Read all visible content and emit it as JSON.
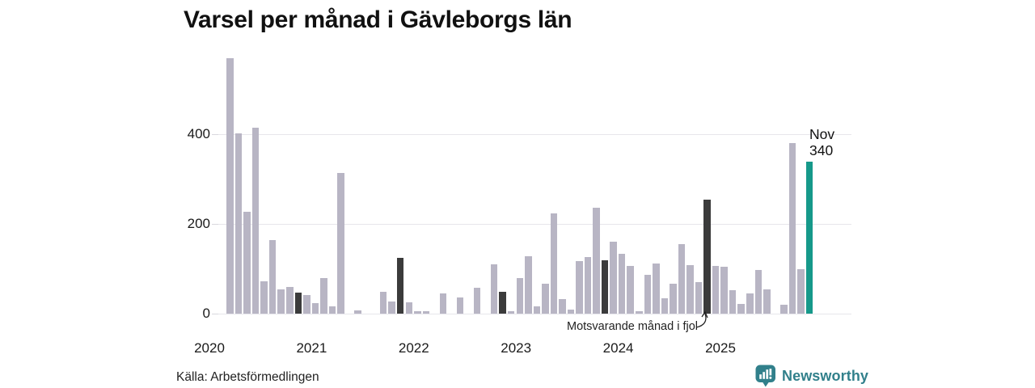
{
  "header": {
    "title": "Varsel per månad i Gävleborgs län"
  },
  "chart_data": {
    "type": "bar",
    "title": "Varsel per månad i Gävleborgs län",
    "x": [
      "2020-03",
      "2020-04",
      "2020-05",
      "2020-06",
      "2020-07",
      "2020-08",
      "2020-09",
      "2020-10",
      "2020-11",
      "2020-12",
      "2021-01",
      "2021-02",
      "2021-03",
      "2021-04",
      "2021-05",
      "2021-06",
      "2021-07",
      "2021-08",
      "2021-09",
      "2021-10",
      "2021-11",
      "2021-12",
      "2022-01",
      "2022-02",
      "2022-03",
      "2022-04",
      "2022-05",
      "2022-06",
      "2022-07",
      "2022-08",
      "2022-09",
      "2022-10",
      "2022-11",
      "2022-12",
      "2023-01",
      "2023-02",
      "2023-03",
      "2023-04",
      "2023-05",
      "2023-06",
      "2023-07",
      "2023-08",
      "2023-09",
      "2023-10",
      "2023-11",
      "2023-12",
      "2024-01",
      "2024-02",
      "2024-03",
      "2024-04",
      "2024-05",
      "2024-06",
      "2024-07",
      "2024-08",
      "2024-09",
      "2024-10",
      "2024-11",
      "2024-12",
      "2025-01",
      "2025-02",
      "2025-03",
      "2025-04",
      "2025-05",
      "2025-06",
      "2025-07",
      "2025-08",
      "2025-09",
      "2025-10",
      "2025-11"
    ],
    "values": [
      570,
      403,
      228,
      414,
      73,
      164,
      54,
      59,
      47,
      41,
      23,
      80,
      17,
      314,
      0,
      8,
      0,
      0,
      48,
      28,
      124,
      26,
      6,
      6,
      0,
      45,
      0,
      36,
      0,
      57,
      0,
      110,
      48,
      6,
      80,
      129,
      17,
      66,
      223,
      33,
      10,
      117,
      127,
      237,
      120,
      161,
      133,
      106,
      5,
      86,
      112,
      34,
      67,
      156,
      109,
      71,
      255,
      107,
      105,
      52,
      22,
      45,
      97,
      54,
      0,
      20,
      380,
      99,
      340
    ],
    "previous_november_indices": [
      8,
      20,
      32,
      44,
      56
    ],
    "current_month_index": 68,
    "colors": {
      "default": "#b8b5c4",
      "previous_november": "#3b3b3b",
      "current_month": "#16998a",
      "gridline": "#e7e6eb"
    },
    "y_ticks": [
      "0",
      "200",
      "400"
    ],
    "y_tick_values": [
      0,
      200,
      400
    ],
    "ylim": [
      0,
      590
    ],
    "x_ticks": [
      "2020",
      "2021",
      "2022",
      "2023",
      "2024",
      "2025"
    ],
    "legend": "none",
    "grid": "horizontal",
    "annotation": {
      "text": "Motsvarande månad i fjol",
      "target_index": 56
    },
    "current_label": {
      "month": "Nov",
      "value": "340"
    }
  },
  "footer": {
    "source": "Källa: Arbetsförmedlingen",
    "brand": "Newsworthy",
    "brand_color": "#31808b"
  }
}
